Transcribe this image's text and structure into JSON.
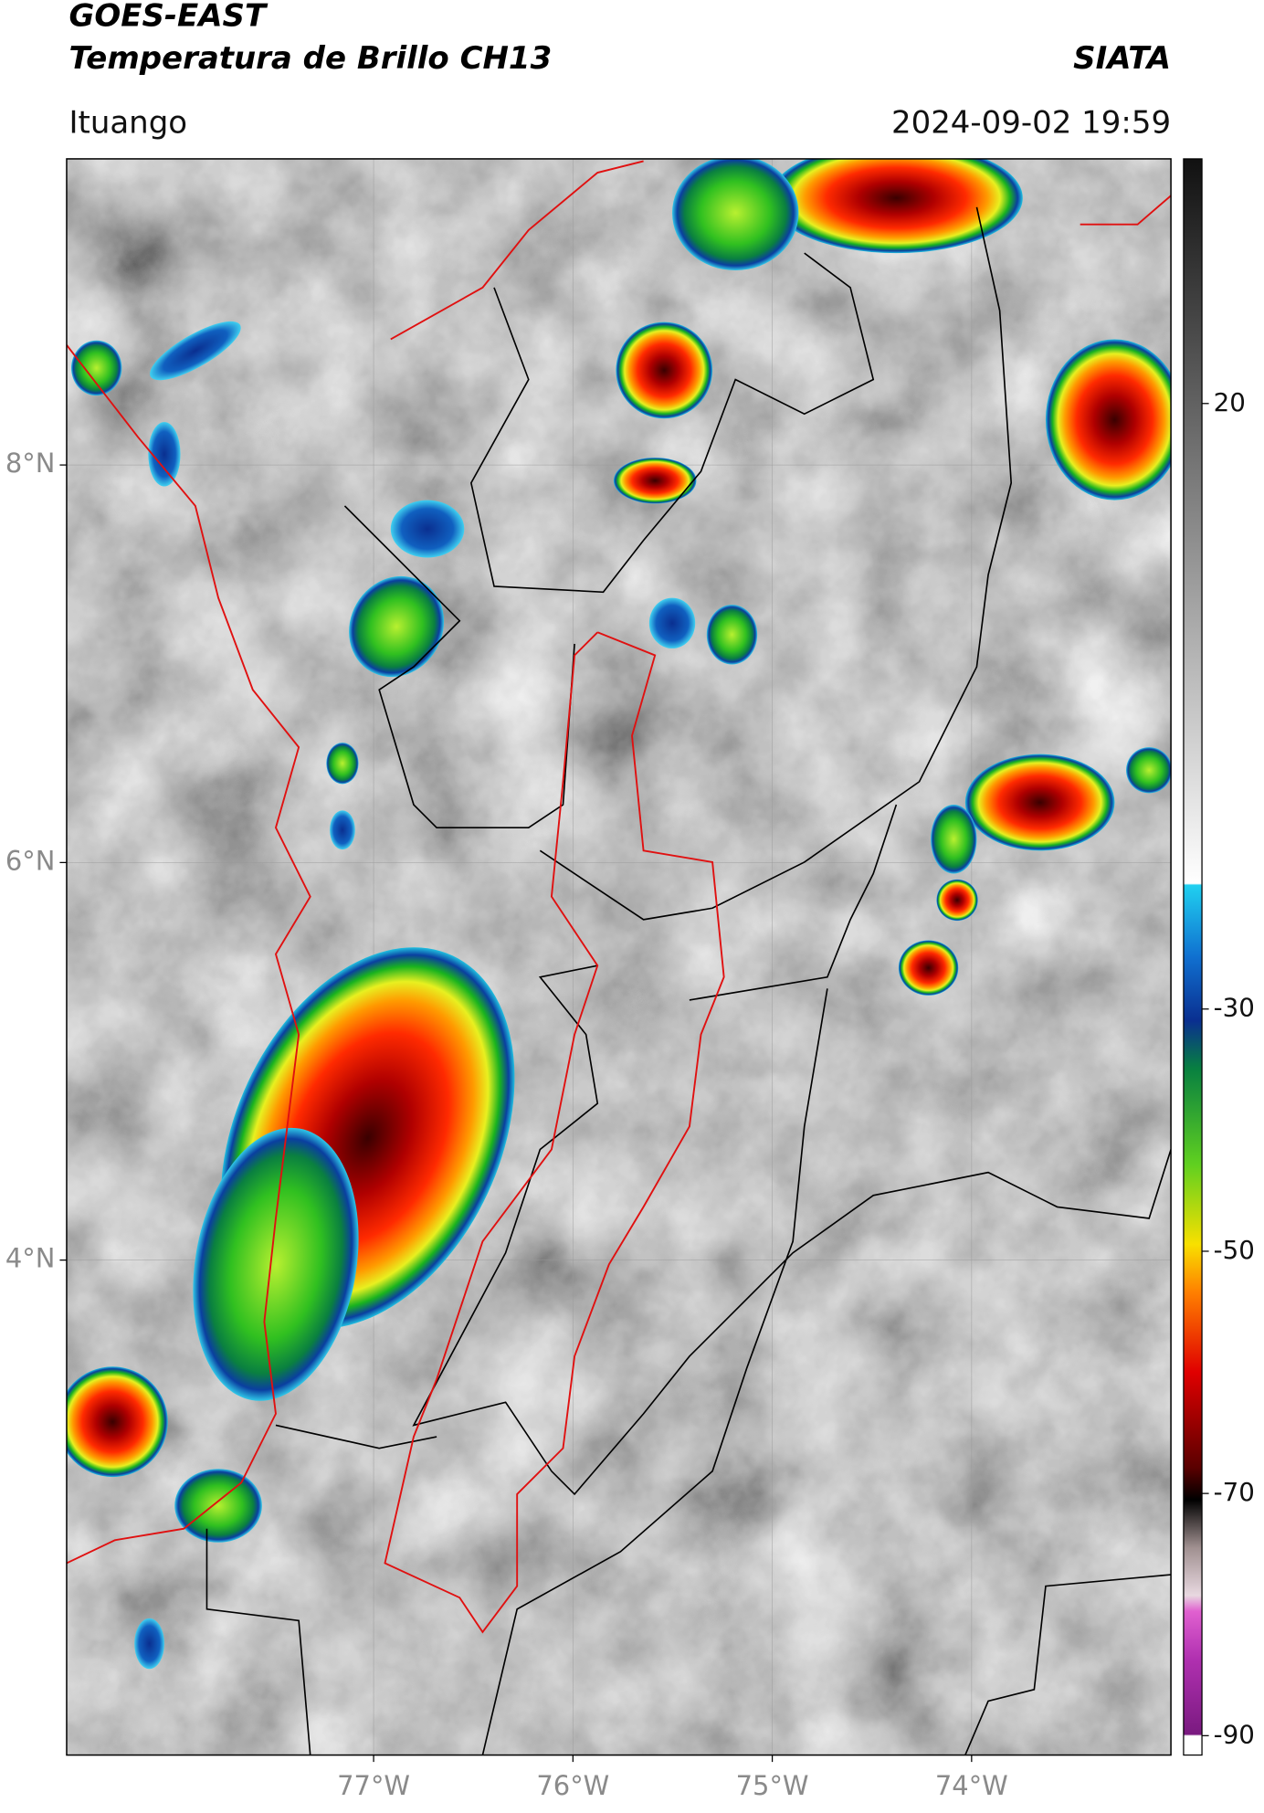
{
  "header": {
    "title": "GOES-EAST",
    "subtitle": "Temperatura de Brillo CH13",
    "source": "SIATA",
    "location": "Ituango",
    "datetime": "2024-09-02 19:59"
  },
  "map": {
    "xlim": [
      -78.54,
      -73.0
    ],
    "ylim": [
      1.51,
      9.54
    ],
    "xticks": [
      {
        "value": -77,
        "label": "77°W"
      },
      {
        "value": -76,
        "label": "76°W"
      },
      {
        "value": -75,
        "label": "75°W"
      },
      {
        "value": -74,
        "label": "74°W"
      }
    ],
    "yticks": [
      {
        "value": 8,
        "label": "8°N"
      },
      {
        "value": 6,
        "label": "6°N"
      },
      {
        "value": 4,
        "label": "4°N"
      }
    ]
  },
  "colorbar": {
    "lim": [
      -91.6,
      40.2
    ],
    "ticks": [
      20,
      -30,
      -50,
      -70,
      -90
    ]
  }
}
